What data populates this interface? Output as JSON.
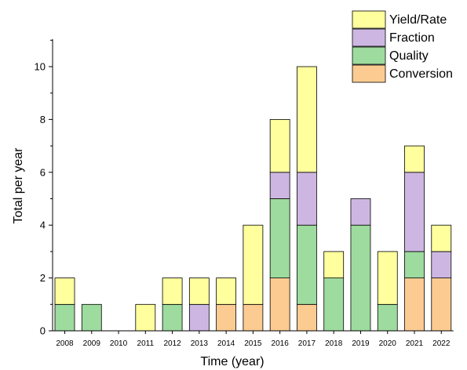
{
  "chart_data": {
    "type": "bar",
    "stacked": true,
    "categories": [
      "2008",
      "2009",
      "2010",
      "2011",
      "2012",
      "2013",
      "2014",
      "2015",
      "2016",
      "2017",
      "2018",
      "2019",
      "2020",
      "2021",
      "2022"
    ],
    "series": [
      {
        "name": "Conversion",
        "color": "#fccb91",
        "values": [
          0,
          0,
          0,
          0,
          0,
          0,
          1,
          1,
          2,
          1,
          0,
          0,
          0,
          2,
          2
        ]
      },
      {
        "name": "Quality",
        "color": "#9edb9e",
        "values": [
          1,
          1,
          0,
          0,
          1,
          0,
          0,
          0,
          3,
          3,
          2,
          4,
          1,
          1,
          0
        ]
      },
      {
        "name": "Fraction",
        "color": "#cdb7e2",
        "values": [
          0,
          0,
          0,
          0,
          0,
          1,
          0,
          0,
          1,
          2,
          0,
          1,
          0,
          3,
          1
        ]
      },
      {
        "name": "Yield/Rate",
        "color": "#ffff9e",
        "values": [
          1,
          0,
          0,
          1,
          1,
          1,
          1,
          3,
          2,
          4,
          1,
          0,
          2,
          1,
          1
        ]
      }
    ],
    "legend_order": [
      "Yield/Rate",
      "Fraction",
      "Quality",
      "Conversion"
    ],
    "legend_position": "top-right",
    "xlabel": "Time (year)",
    "ylabel": "Total per year",
    "ylim": [
      0,
      11
    ],
    "yticks": [
      0,
      2,
      4,
      6,
      8,
      10
    ],
    "grid": false
  }
}
